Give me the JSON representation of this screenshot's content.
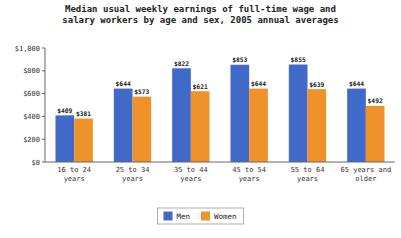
{
  "chart_data": {
    "type": "bar",
    "title": "Median usual weekly earnings of full-time wage and\nsalary workers by age and sex, 2005 annual averages",
    "categories": [
      "16 to 24\nyears",
      "25 to 34\nyears",
      "35 to 44\nyears",
      "45 to 54\nyears",
      "55 to 64\nyears",
      "65 years and\nolder"
    ],
    "series": [
      {
        "name": "Men",
        "color": "#4169C8",
        "values": [
          409,
          644,
          822,
          853,
          855,
          644
        ],
        "value_labels": [
          "$409",
          "$644",
          "$822",
          "$853",
          "$855",
          "$644"
        ]
      },
      {
        "name": "Women",
        "color": "#F0922A",
        "values": [
          381,
          573,
          621,
          644,
          639,
          492
        ],
        "value_labels": [
          "$381",
          "$573",
          "$621",
          "$644",
          "$639",
          "$492"
        ]
      }
    ],
    "ylim": [
      0,
      1000
    ],
    "yticks": [
      {
        "value": 0,
        "label": "$0"
      },
      {
        "value": 200,
        "label": "$200"
      },
      {
        "value": 400,
        "label": "$400"
      },
      {
        "value": 600,
        "label": "$600"
      },
      {
        "value": 800,
        "label": "$800"
      },
      {
        "value": 1000,
        "label": "$1,000"
      }
    ],
    "data_labels": true,
    "grid": false,
    "legend": "bottom"
  }
}
